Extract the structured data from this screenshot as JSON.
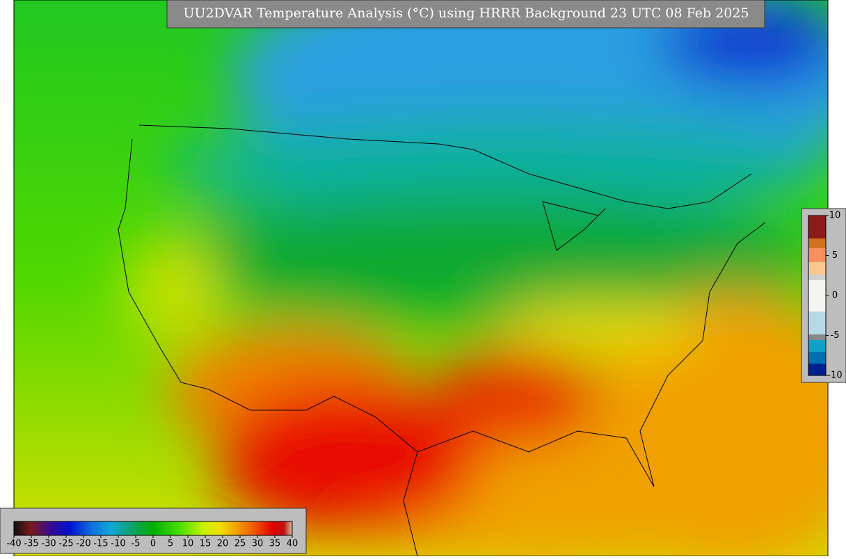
{
  "title": "UU2DVAR Temperature Analysis (°C) using HRRR Background 23 UTC 08 Feb 2025",
  "main_colorbar": {
    "ticks": [
      -40,
      -35,
      -30,
      -25,
      -20,
      -15,
      -10,
      -5,
      0,
      5,
      10,
      15,
      20,
      25,
      30,
      35,
      40
    ]
  },
  "inset_colorbar": {
    "ticks": [
      10,
      5,
      0,
      -5,
      -10
    ]
  }
}
